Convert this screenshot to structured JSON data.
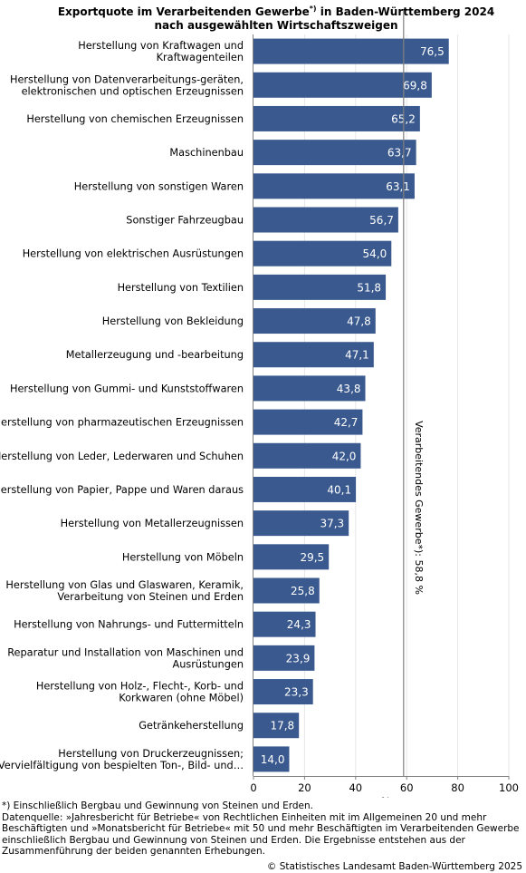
{
  "title": {
    "line1_pre": "Exportquote im Verarbeitenden Gewerbe",
    "line1_sup": "*)",
    "line1_post": " in Baden-Württemberg 2024",
    "line2": "nach ausgewählten Wirtschaftszweigen"
  },
  "chart_data": {
    "type": "bar",
    "orientation": "horizontal",
    "categories": [
      "Herstellung von Kraftwagen und Kraftwagenteilen",
      "Herstellung von Datenverarbeitungs-geräten, elektronischen und optischen Erzeugnissen",
      "Herstellung von chemischen Erzeugnissen",
      "Maschinenbau",
      "Herstellung von sonstigen Waren",
      "Sonstiger Fahrzeugbau",
      "Herstellung von elektrischen Ausrüstungen",
      "Herstellung von Textilien",
      "Herstellung von Bekleidung",
      "Metallerzeugung und -bearbeitung",
      "Herstellung von Gummi- und Kunststoffwaren",
      "Herstellung von pharmazeutischen Erzeugnissen",
      "Herstellung von Leder, Lederwaren und Schuhen",
      "Herstellung von Papier, Pappe und Waren daraus",
      "Herstellung von Metallerzeugnissen",
      "Herstellung von Möbeln",
      "Herstellung von Glas und Glaswaren, Keramik, Verarbeitung von Steinen und Erden",
      "Herstellung von Nahrungs- und Futtermitteln",
      "Reparatur und Installation von Maschinen und Ausrüstungen",
      "Herstellung von Holz-, Flecht-, Korb- und Korkwaren (ohne Möbel)",
      "Getränkeherstellung",
      "Herstellung von Druckerzeugnissen; Vervielfältigung von bespielten Ton-, Bild- und…"
    ],
    "category_lines": [
      [
        "Herstellung von Kraftwagen und",
        "Kraftwagenteilen"
      ],
      [
        "Herstellung von Datenverarbeitungs-geräten,",
        "elektronischen und optischen Erzeugnissen"
      ],
      [
        "Herstellung von chemischen Erzeugnissen"
      ],
      [
        "Maschinenbau"
      ],
      [
        "Herstellung von sonstigen Waren"
      ],
      [
        "Sonstiger Fahrzeugbau"
      ],
      [
        "Herstellung von elektrischen Ausrüstungen"
      ],
      [
        "Herstellung von Textilien"
      ],
      [
        "Herstellung von Bekleidung"
      ],
      [
        "Metallerzeugung und -bearbeitung"
      ],
      [
        "Herstellung von Gummi- und Kunststoffwaren"
      ],
      [
        "Herstellung von pharmazeutischen Erzeugnissen"
      ],
      [
        "Herstellung von Leder, Lederwaren und Schuhen"
      ],
      [
        "Herstellung von Papier, Pappe und Waren daraus"
      ],
      [
        "Herstellung von Metallerzeugnissen"
      ],
      [
        "Herstellung von Möbeln"
      ],
      [
        "Herstellung von Glas und Glaswaren, Keramik,",
        "Verarbeitung von Steinen und Erden"
      ],
      [
        "Herstellung von Nahrungs- und Futtermitteln"
      ],
      [
        "Reparatur und Installation von Maschinen und",
        "Ausrüstungen"
      ],
      [
        "Herstellung von Holz-, Flecht-, Korb- und",
        "Korkwaren (ohne Möbel)"
      ],
      [
        "Getränkeherstellung"
      ],
      [
        "Herstellung von Druckerzeugnissen;",
        "Vervielfältigung von bespielten Ton-, Bild- und…"
      ]
    ],
    "values": [
      76.5,
      69.8,
      65.2,
      63.7,
      63.1,
      56.7,
      54.0,
      51.8,
      47.8,
      47.1,
      43.8,
      42.7,
      42.0,
      40.1,
      37.3,
      29.5,
      25.8,
      24.3,
      23.9,
      23.3,
      17.8,
      14.0
    ],
    "value_labels": [
      "76,5",
      "69,8",
      "65,2",
      "63,7",
      "63,1",
      "56,7",
      "54,0",
      "51,8",
      "47,8",
      "47,1",
      "43,8",
      "42,7",
      "42,0",
      "40,1",
      "37,3",
      "29,5",
      "25,8",
      "24,3",
      "23,9",
      "23,3",
      "17,8",
      "14,0"
    ],
    "xlim": [
      0,
      100
    ],
    "xticks": [
      0,
      20,
      40,
      60,
      80,
      100
    ],
    "xlabel": "%",
    "grid": true,
    "reference_line": {
      "value": 58.8,
      "label": "Verarbeitendes Gewerbe*): 58,8 %"
    },
    "bar_color": "#3a5a8f",
    "reference_line_color": "#808080"
  },
  "footnotes": {
    "line1": "*) Einschließlich Bergbau und Gewinnung von Steinen und Erden.",
    "line2": "Datenquelle: »Jahresbericht für Betriebe« von Rechtlichen Einheiten mit im Allgemeinen 20 und mehr Beschäftigten und »Monatsbericht für Betriebe« mit 50 und mehr Beschäftigten im Verarbeitenden Gewerbe einschließlich Bergbau und Gewinnung von Steinen und Erden. Die Ergebnisse entstehen aus der Zusammenführung der beiden genannten Erhebungen.",
    "copyright": "© Statistisches Landesamt Baden-Württemberg 2025"
  }
}
